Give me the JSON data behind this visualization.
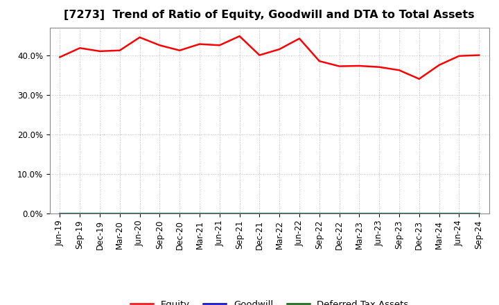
{
  "title": "[7273]  Trend of Ratio of Equity, Goodwill and DTA to Total Assets",
  "labels": [
    "Jun-19",
    "Sep-19",
    "Dec-19",
    "Mar-20",
    "Jun-20",
    "Sep-20",
    "Dec-20",
    "Mar-21",
    "Jun-21",
    "Sep-21",
    "Dec-21",
    "Mar-22",
    "Jun-22",
    "Sep-22",
    "Dec-22",
    "Mar-23",
    "Jun-23",
    "Sep-23",
    "Dec-23",
    "Mar-24",
    "Jun-24",
    "Sep-24"
  ],
  "equity": [
    39.5,
    41.8,
    41.0,
    41.2,
    44.5,
    42.5,
    41.2,
    42.8,
    42.5,
    44.8,
    40.0,
    41.5,
    44.2,
    38.5,
    37.2,
    37.3,
    37.0,
    36.2,
    34.0,
    37.5,
    39.8,
    40.0
  ],
  "goodwill": [
    0.0,
    0.0,
    0.0,
    0.0,
    0.0,
    0.0,
    0.0,
    0.0,
    0.0,
    0.0,
    0.0,
    0.0,
    0.0,
    0.0,
    0.0,
    0.0,
    0.0,
    0.0,
    0.0,
    0.0,
    0.0,
    0.0
  ],
  "dta": [
    0.0,
    0.0,
    0.0,
    0.0,
    0.0,
    0.0,
    0.0,
    0.0,
    0.0,
    0.0,
    0.0,
    0.0,
    0.0,
    0.0,
    0.0,
    0.0,
    0.0,
    0.0,
    0.0,
    0.0,
    0.0,
    0.0
  ],
  "equity_color": "#ff0000",
  "goodwill_color": "#0000cd",
  "dta_color": "#006400",
  "ylim": [
    0,
    47
  ],
  "yticks": [
    0,
    10,
    20,
    30,
    40
  ],
  "ytick_labels": [
    "0.0%",
    "10.0%",
    "20.0%",
    "30.0%",
    "40.0%"
  ],
  "background_color": "#ffffff",
  "plot_bg_color": "#ffffff",
  "grid_color": "#999999",
  "title_fontsize": 11.5,
  "tick_fontsize": 8.5,
  "legend_fontsize": 9.5,
  "line_width": 1.8
}
